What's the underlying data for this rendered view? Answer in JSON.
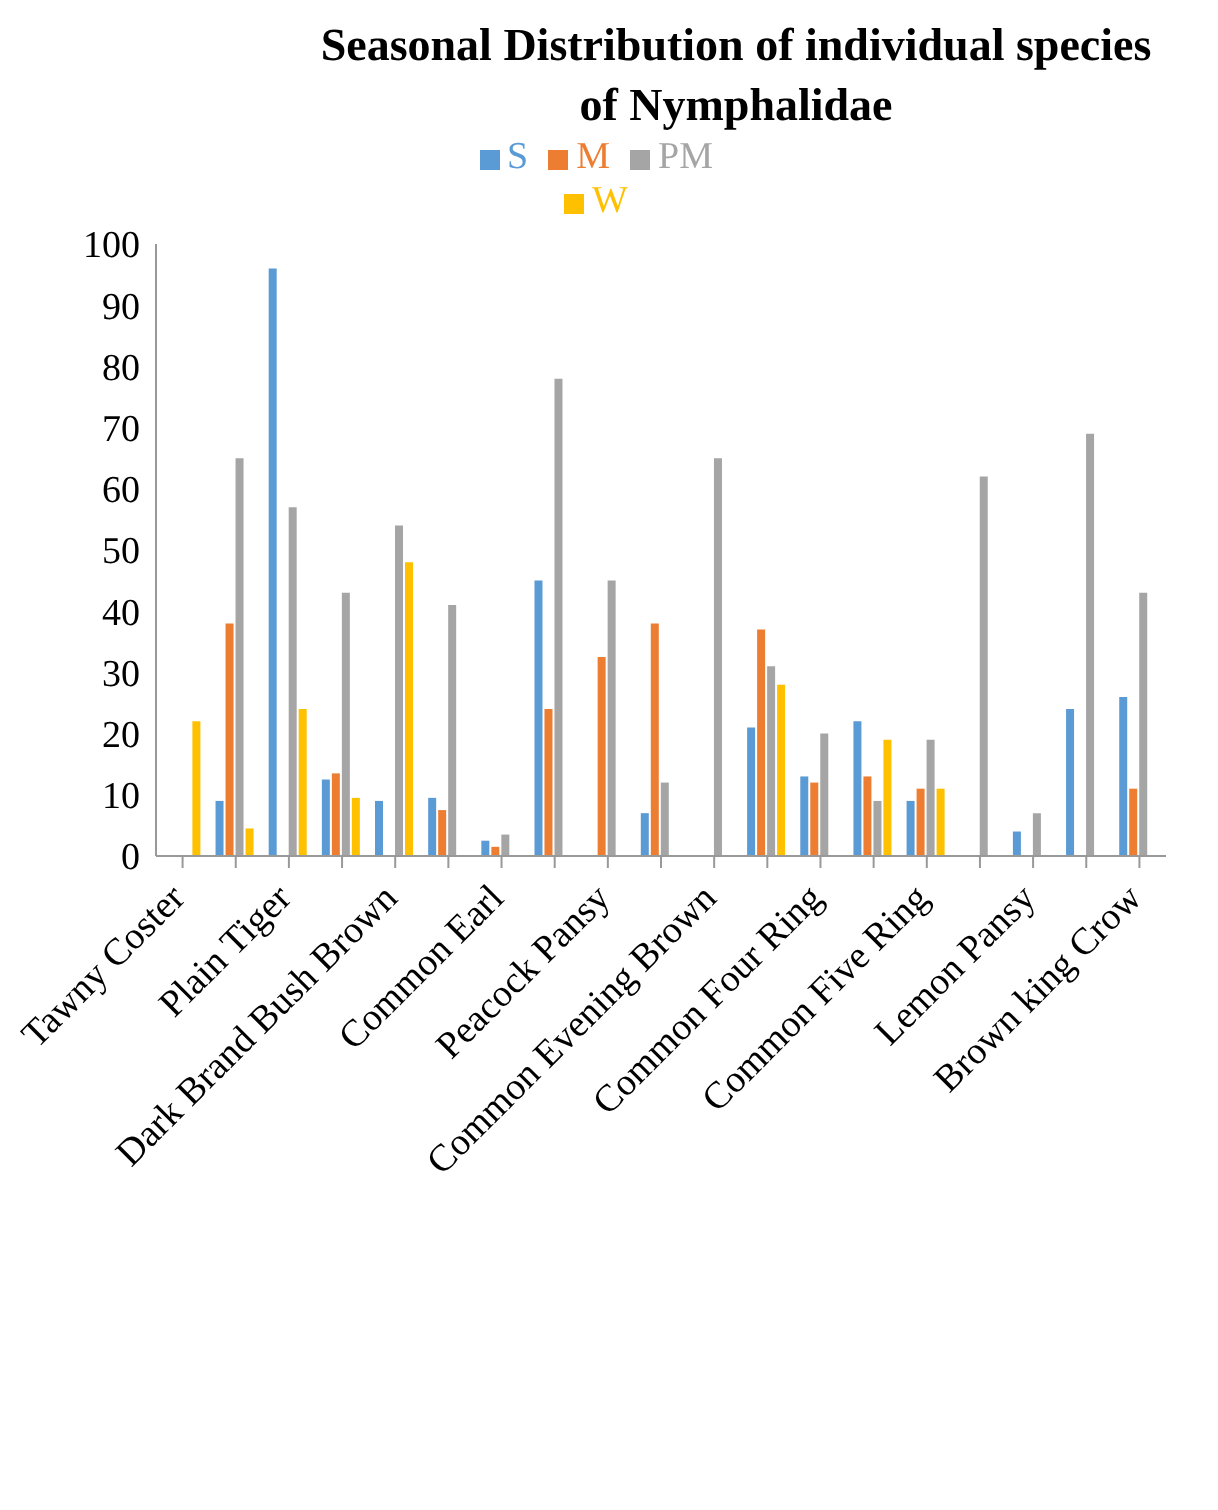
{
  "chart_data": {
    "type": "bar",
    "title": "Seasonal Distribution of individual species of Nymphalidae",
    "categories": [
      "Tawny Coster",
      null,
      "Plain Tiger",
      null,
      "Dark Brand Bush Brown",
      null,
      "Common Earl",
      null,
      "Peacock Pansy",
      null,
      "Common Evening Brown",
      null,
      "Common Four Ring",
      null,
      "Common Five Ring",
      null,
      "Lemon Pansy",
      null,
      "Brown king Crow"
    ],
    "series": [
      {
        "name": "S",
        "color": "#5b9bd5",
        "values": [
          null,
          9,
          96,
          12.5,
          9,
          9.5,
          2.5,
          45,
          null,
          7,
          null,
          21,
          13,
          22,
          9,
          null,
          4,
          24,
          26
        ]
      },
      {
        "name": "M",
        "color": "#ed7d31",
        "values": [
          null,
          38,
          null,
          13.5,
          null,
          7.5,
          1.5,
          24,
          32.5,
          38,
          null,
          37,
          12,
          13,
          11,
          null,
          null,
          null,
          11
        ]
      },
      {
        "name": "PM",
        "color": "#a5a5a5",
        "values": [
          null,
          65,
          57,
          43,
          54,
          41,
          3.5,
          78,
          45,
          12,
          65,
          31,
          20,
          9,
          19,
          62,
          7,
          69,
          43
        ]
      },
      {
        "name": "W",
        "color": "#ffc000",
        "values": [
          22,
          4.5,
          24,
          9.5,
          48,
          null,
          null,
          null,
          null,
          null,
          null,
          28,
          null,
          19,
          11,
          null,
          null,
          null,
          null
        ]
      }
    ],
    "ylim": [
      0,
      100
    ],
    "yticks": [
      0,
      10,
      20,
      30,
      40,
      50,
      60,
      70,
      80,
      90,
      100
    ],
    "grid": false,
    "legend": "top"
  }
}
